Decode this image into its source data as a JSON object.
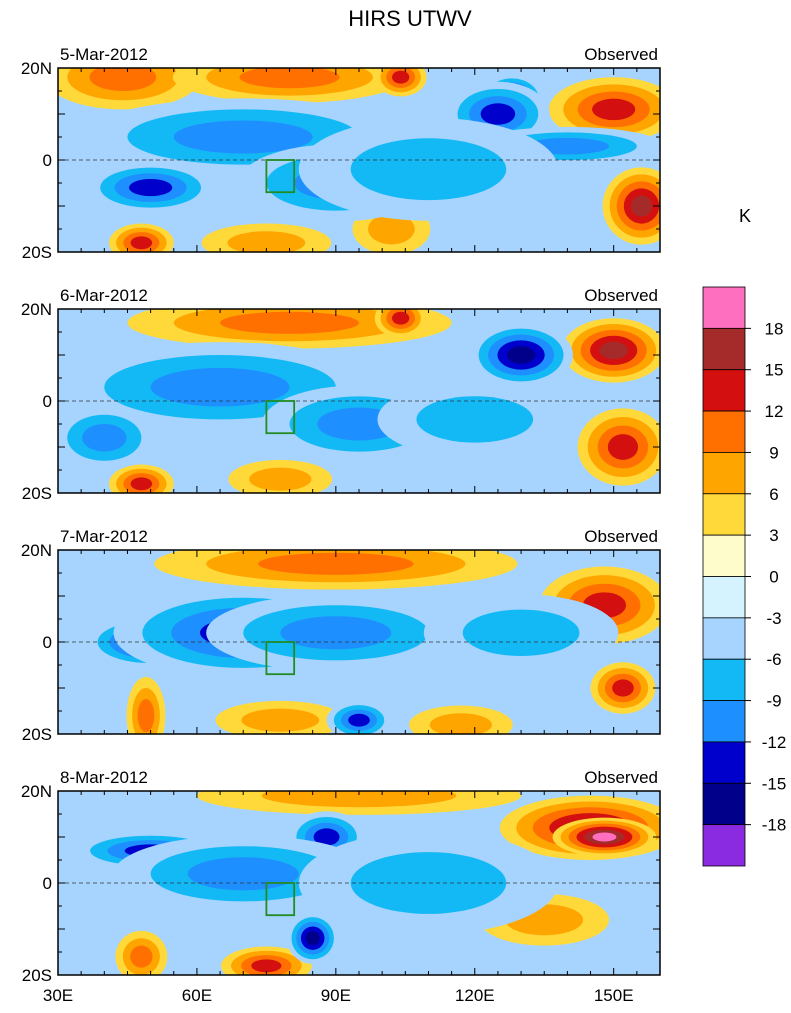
{
  "chart_data": {
    "type": "heatmap",
    "title": "HIRS UTWV",
    "unit_label": "K",
    "panel_right_label": "Observed",
    "x_ticks": [
      "30E",
      "60E",
      "90E",
      "120E",
      "150E"
    ],
    "x_range": [
      30,
      160
    ],
    "y_ticks": [
      "20N",
      "0",
      "20S"
    ],
    "y_range": [
      -20,
      20
    ],
    "colorbar": {
      "levels": [
        "18",
        "15",
        "12",
        "9",
        "6",
        "3",
        "0",
        "-3",
        "-6",
        "-9",
        "-12",
        "-15",
        "-18"
      ],
      "colors": [
        "#ff6fbf",
        "#a52a2a",
        "#d40f0f",
        "#ff7000",
        "#ffa500",
        "#ffd93a",
        "#fffccc",
        "#d5f3ff",
        "#a6d4ff",
        "#13b9f5",
        "#1e8fff",
        "#0000cd",
        "#00008b",
        "#8a2be2"
      ]
    },
    "panels": [
      {
        "date": "5-Mar-2012",
        "anomalies": [
          {
            "x": 44,
            "y": 18,
            "val": 9,
            "sx": 12,
            "sy": 5
          },
          {
            "x": 80,
            "y": 18,
            "val": 9,
            "sx": 18,
            "sy": 4
          },
          {
            "x": 104,
            "y": 18,
            "val": 12,
            "sx": 4,
            "sy": 3
          },
          {
            "x": 150,
            "y": 11,
            "val": 12,
            "sx": 10,
            "sy": 5
          },
          {
            "x": 156,
            "y": -10,
            "val": 15,
            "sx": 6,
            "sy": 6
          },
          {
            "x": 48,
            "y": -18,
            "val": 12,
            "sx": 5,
            "sy": 3
          },
          {
            "x": 75,
            "y": -18,
            "val": 6,
            "sx": 10,
            "sy": 3
          },
          {
            "x": 102,
            "y": -15,
            "val": 6,
            "sx": 6,
            "sy": 4
          },
          {
            "x": 128,
            "y": 13,
            "val": -18,
            "sx": 5,
            "sy": 4
          },
          {
            "x": 125,
            "y": 10,
            "val": -12,
            "sx": 8,
            "sy": 5
          },
          {
            "x": 70,
            "y": 5,
            "val": -9,
            "sx": 25,
            "sy": 6
          },
          {
            "x": 50,
            "y": -6,
            "val": -12,
            "sx": 10,
            "sy": 4
          },
          {
            "x": 90,
            "y": -5,
            "val": -9,
            "sx": 15,
            "sy": 6
          },
          {
            "x": 140,
            "y": 3,
            "val": -9,
            "sx": 15,
            "sy": 3
          },
          {
            "x": 110,
            "y": -2,
            "val": -6,
            "sx": 20,
            "sy": 8
          }
        ]
      },
      {
        "date": "6-Mar-2012",
        "anomalies": [
          {
            "x": 80,
            "y": 17,
            "val": 9,
            "sx": 25,
            "sy": 4
          },
          {
            "x": 104,
            "y": 18,
            "val": 12,
            "sx": 4,
            "sy": 3
          },
          {
            "x": 150,
            "y": 11,
            "val": 15,
            "sx": 8,
            "sy": 5
          },
          {
            "x": 152,
            "y": -10,
            "val": 12,
            "sx": 7,
            "sy": 6
          },
          {
            "x": 48,
            "y": -18,
            "val": 12,
            "sx": 5,
            "sy": 3
          },
          {
            "x": 78,
            "y": -17,
            "val": 6,
            "sx": 8,
            "sy": 3
          },
          {
            "x": 130,
            "y": 10,
            "val": -15,
            "sx": 8,
            "sy": 5
          },
          {
            "x": 72,
            "y": 7,
            "val": -15,
            "sx": 10,
            "sy": 4
          },
          {
            "x": 65,
            "y": 3,
            "val": -9,
            "sx": 25,
            "sy": 7
          },
          {
            "x": 95,
            "y": -5,
            "val": -9,
            "sx": 15,
            "sy": 6
          },
          {
            "x": 40,
            "y": -8,
            "val": -9,
            "sx": 8,
            "sy": 5
          },
          {
            "x": 120,
            "y": -4,
            "val": -6,
            "sx": 15,
            "sy": 6
          }
        ]
      },
      {
        "date": "7-Mar-2012",
        "anomalies": [
          {
            "x": 90,
            "y": 17,
            "val": 9,
            "sx": 28,
            "sy": 4
          },
          {
            "x": 152,
            "y": 8,
            "val": 18,
            "sx": 8,
            "sy": 3
          },
          {
            "x": 148,
            "y": 8,
            "val": 12,
            "sx": 10,
            "sy": 6
          },
          {
            "x": 152,
            "y": -10,
            "val": 12,
            "sx": 5,
            "sy": 4
          },
          {
            "x": 49,
            "y": -16,
            "val": 9,
            "sx": 3,
            "sy": 6
          },
          {
            "x": 78,
            "y": -17,
            "val": 6,
            "sx": 10,
            "sy": 3
          },
          {
            "x": 117,
            "y": -18,
            "val": 6,
            "sx": 8,
            "sy": 3
          },
          {
            "x": 50,
            "y": 0,
            "val": -15,
            "sx": 10,
            "sy": 4
          },
          {
            "x": 70,
            "y": 2,
            "val": -12,
            "sx": 20,
            "sy": 7
          },
          {
            "x": 95,
            "y": -17,
            "val": -12,
            "sx": 5,
            "sy": 3
          },
          {
            "x": 90,
            "y": 2,
            "val": -9,
            "sx": 20,
            "sy": 6
          },
          {
            "x": 130,
            "y": 2,
            "val": -6,
            "sx": 15,
            "sy": 6
          }
        ]
      },
      {
        "date": "8-Mar-2012",
        "anomalies": [
          {
            "x": 95,
            "y": 19,
            "val": 6,
            "sx": 25,
            "sy": 3
          },
          {
            "x": 145,
            "y": 12,
            "val": 15,
            "sx": 14,
            "sy": 5
          },
          {
            "x": 148,
            "y": 10,
            "val": 18,
            "sx": 8,
            "sy": 3
          },
          {
            "x": 75,
            "y": -18,
            "val": 12,
            "sx": 7,
            "sy": 3
          },
          {
            "x": 48,
            "y": -16,
            "val": 9,
            "sx": 4,
            "sy": 4
          },
          {
            "x": 135,
            "y": -8,
            "val": 6,
            "sx": 10,
            "sy": 4
          },
          {
            "x": 50,
            "y": 7,
            "val": -12,
            "sx": 12,
            "sy": 3
          },
          {
            "x": 88,
            "y": 10,
            "val": -12,
            "sx": 6,
            "sy": 4
          },
          {
            "x": 85,
            "y": -12,
            "val": -15,
            "sx": 4,
            "sy": 4
          },
          {
            "x": 70,
            "y": 2,
            "val": -9,
            "sx": 20,
            "sy": 6
          },
          {
            "x": 110,
            "y": 0,
            "val": -6,
            "sx": 20,
            "sy": 8
          }
        ]
      }
    ]
  }
}
